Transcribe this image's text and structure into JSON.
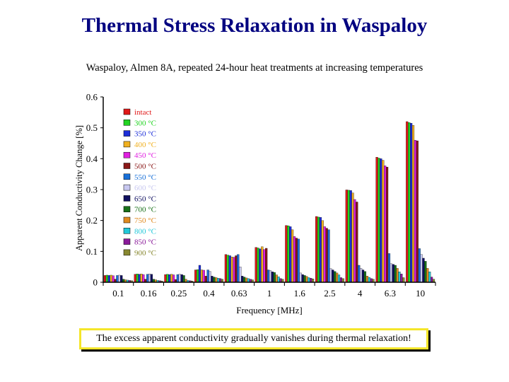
{
  "title": "Thermal  Stress  Relaxation in Waspaloy",
  "caption": "The excess apparent conductivity gradually vanishes during thermal relaxation!",
  "chart_data": {
    "type": "bar",
    "title": "Waspaloy, Almen 8A, repeated 24-hour heat treatments at increasing temperatures",
    "xlabel": "Frequency [MHz]",
    "ylabel": "Apparent Conductivity Change [%]",
    "ylim": [
      0,
      0.6
    ],
    "yticks": [
      "0",
      "0.1",
      "0.2",
      "0.3",
      "0.4",
      "0.5",
      "0.6"
    ],
    "categories": [
      "0.1",
      "0.16",
      "0.25",
      "0.4",
      "0.63",
      "1",
      "1.6",
      "2.5",
      "4",
      "6.3",
      "10"
    ],
    "legend_position": "left-inside",
    "grid": false,
    "series": [
      {
        "name": "intact",
        "color": "#e01818",
        "values": [
          0.022,
          0.026,
          0.025,
          0.04,
          0.09,
          0.113,
          0.184,
          0.213,
          0.299,
          0.405,
          0.52
        ]
      },
      {
        "name": "300 °C",
        "color": "#22d422",
        "values": [
          0.023,
          0.027,
          0.026,
          0.041,
          0.088,
          0.111,
          0.183,
          0.211,
          0.298,
          0.402,
          0.517
        ]
      },
      {
        "name": "350 °C",
        "color": "#1c2ed8",
        "values": [
          0.022,
          0.026,
          0.025,
          0.055,
          0.086,
          0.108,
          0.18,
          0.21,
          0.297,
          0.4,
          0.515
        ]
      },
      {
        "name": "400 °C",
        "color": "#f0b020",
        "values": [
          0.023,
          0.027,
          0.026,
          0.04,
          0.082,
          0.115,
          0.17,
          0.2,
          0.289,
          0.395,
          0.508
        ]
      },
      {
        "name": "450 °C",
        "color": "#e020e0",
        "values": [
          0.021,
          0.025,
          0.024,
          0.039,
          0.081,
          0.106,
          0.148,
          0.18,
          0.268,
          0.377,
          0.46
        ]
      },
      {
        "name": "500 °C",
        "color": "#8a1818",
        "values": [
          0.01,
          0.01,
          0.009,
          0.02,
          0.086,
          0.11,
          0.143,
          0.175,
          0.26,
          0.373,
          0.458
        ]
      },
      {
        "name": "550 °C",
        "color": "#1870d8",
        "values": [
          0.022,
          0.026,
          0.025,
          0.04,
          0.09,
          0.04,
          0.14,
          0.17,
          0.055,
          0.093,
          0.109
        ]
      },
      {
        "name": "600 °C",
        "color": "#c8c8f0",
        "values": [
          0.023,
          0.027,
          0.026,
          0.035,
          0.05,
          0.038,
          0.03,
          0.044,
          0.045,
          0.06,
          0.09
        ]
      },
      {
        "name": "650 °C",
        "color": "#101060",
        "values": [
          0.022,
          0.026,
          0.025,
          0.02,
          0.02,
          0.034,
          0.025,
          0.04,
          0.04,
          0.058,
          0.078
        ]
      },
      {
        "name": "700 °C",
        "color": "#187018",
        "values": [
          0.01,
          0.01,
          0.022,
          0.017,
          0.017,
          0.032,
          0.022,
          0.035,
          0.035,
          0.055,
          0.068
        ]
      },
      {
        "name": "750 °C",
        "color": "#e08a20",
        "values": [
          0.008,
          0.008,
          0.01,
          0.015,
          0.014,
          0.024,
          0.019,
          0.03,
          0.02,
          0.045,
          0.045
        ]
      },
      {
        "name": "800 °C",
        "color": "#22c8d8",
        "values": [
          0.007,
          0.006,
          0.006,
          0.013,
          0.012,
          0.018,
          0.015,
          0.024,
          0.016,
          0.034,
          0.034
        ]
      },
      {
        "name": "850 °C",
        "color": "#8a1a9a",
        "values": [
          0.006,
          0.005,
          0.005,
          0.012,
          0.01,
          0.012,
          0.013,
          0.015,
          0.012,
          0.027,
          0.017
        ]
      },
      {
        "name": "900 °C",
        "color": "#888830",
        "values": [
          0.005,
          0.004,
          0.004,
          0.01,
          0.008,
          0.01,
          0.011,
          0.012,
          0.01,
          0.015,
          0.01
        ]
      }
    ]
  }
}
